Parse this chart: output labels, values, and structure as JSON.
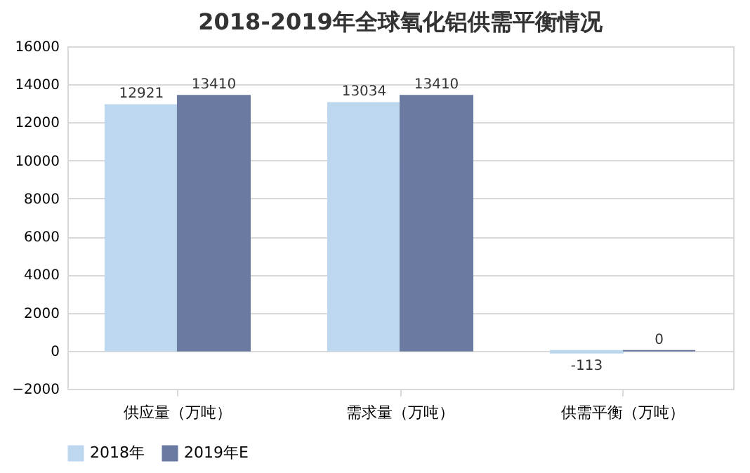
{
  "chart_data": {
    "type": "bar",
    "title": "2018-2019年全球氧化铝供需平衡情况",
    "categories": [
      "供应量（万吨）",
      "需求量（万吨）",
      "供需平衡（万吨）"
    ],
    "series": [
      {
        "name": "2018年",
        "color": "#bdd7ee",
        "values": [
          12921,
          13034,
          -113
        ]
      },
      {
        "name": "2019年E",
        "color": "#6b7aa1",
        "values": [
          13410,
          13410,
          0
        ]
      }
    ],
    "ylim": [
      -2000,
      16000
    ],
    "yticks": [
      -2000,
      0,
      2000,
      4000,
      6000,
      8000,
      10000,
      12000,
      14000,
      16000
    ],
    "grid": "y",
    "legend": "bottom",
    "data_labels": true
  }
}
